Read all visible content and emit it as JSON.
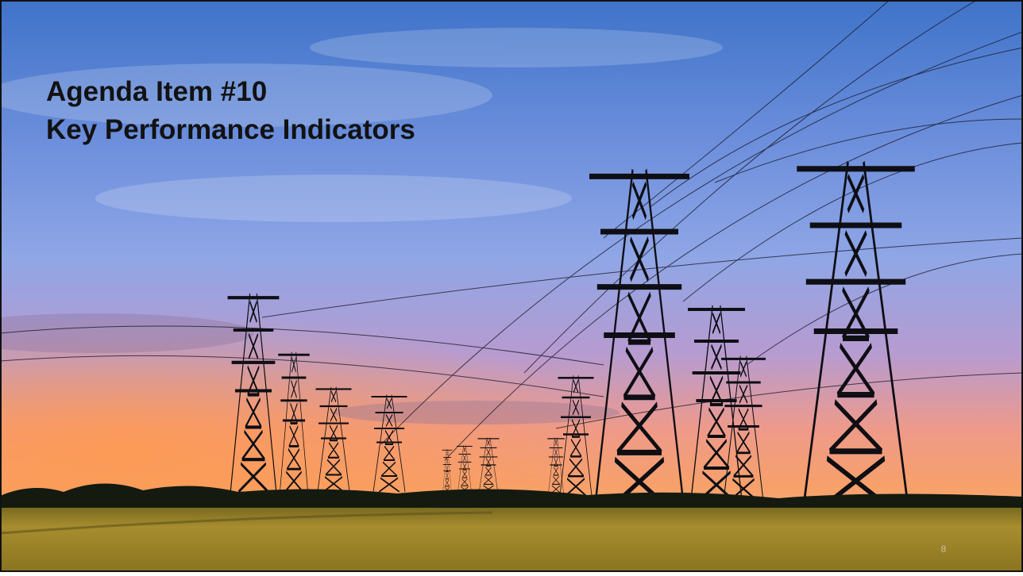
{
  "slide": {
    "title_lines": [
      "Agenda Item #10",
      "Key Performance Indicators"
    ],
    "page_number": "8"
  }
}
